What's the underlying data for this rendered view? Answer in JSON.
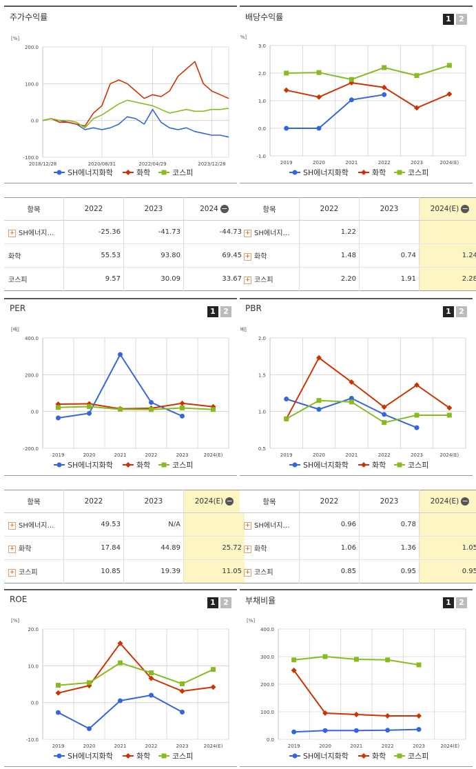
{
  "colors": {
    "sh": "#3366dd",
    "chem": "#cc3300",
    "kospi": "#88bb22",
    "grid": "#d0d0d0",
    "est_bg": "#fdf5c4"
  },
  "legend": [
    "SH에너지화학",
    "화학",
    "코스피"
  ],
  "page_buttons": [
    "1",
    "2"
  ],
  "charts": {
    "price": {
      "title": "주가수익률",
      "unit": "[%]",
      "y_ticks": [
        "200.0",
        "100.0",
        "0.0",
        "-100.0"
      ],
      "x_ticks": [
        "2018/12/28",
        "2020/08/31",
        "2022/04/29",
        "2023/12/28"
      ]
    },
    "dividend": {
      "title": "배당수익률",
      "unit": "[%]",
      "y_ticks": [
        "3.0",
        "2.0",
        "1.0",
        "0.0",
        "-1.0"
      ],
      "x_ticks": [
        "2019",
        "2020",
        "2021",
        "2022",
        "2023",
        "2024(E)"
      ]
    },
    "per": {
      "title": "PER",
      "unit": "[배]",
      "y_ticks": [
        "400.0",
        "200.0",
        "0.0",
        "-200.0"
      ],
      "x_ticks": [
        "2019",
        "2020",
        "2021",
        "2022",
        "2023",
        "2024(E)"
      ]
    },
    "pbr": {
      "title": "PBR",
      "unit": "[배]",
      "y_ticks": [
        "2.0",
        "1.5",
        "1.0",
        "0.5"
      ],
      "x_ticks": [
        "2019",
        "2020",
        "2021",
        "2022",
        "2023",
        "2024(E)"
      ]
    },
    "roe": {
      "title": "ROE",
      "unit": "[%]",
      "y_ticks": [
        "20.0",
        "10.0",
        "0.0",
        "-10.0"
      ],
      "x_ticks": [
        "2019",
        "2020",
        "2021",
        "2022",
        "2023",
        "2024(E)"
      ]
    },
    "debt": {
      "title": "부채비율",
      "unit": "[%]",
      "y_ticks": [
        "400.0",
        "300.0",
        "200.0",
        "100.0",
        "0.0"
      ],
      "x_ticks": [
        "2019",
        "2020",
        "2021",
        "2022",
        "2023",
        "2024(E)"
      ]
    }
  },
  "tables": {
    "price": {
      "headers": [
        "항목",
        "2022",
        "2023",
        "2024"
      ],
      "rows": [
        [
          "SH에너지…",
          "-25.36",
          "-41.73",
          "-44.73"
        ],
        [
          "화학",
          "55.53",
          "93.80",
          "69.45"
        ],
        [
          "코스피",
          "9.57",
          "30.09",
          "33.67"
        ]
      ]
    },
    "dividend": {
      "headers": [
        "항목",
        "2022",
        "2023",
        "2024(E)"
      ],
      "rows": [
        [
          "SH에너지…",
          "1.22",
          "",
          ""
        ],
        [
          "화학",
          "1.48",
          "0.74",
          "1.24"
        ],
        [
          "코스피",
          "2.20",
          "1.91",
          "2.28"
        ]
      ]
    },
    "per": {
      "headers": [
        "항목",
        "2022",
        "2023",
        "2024(E)"
      ],
      "rows": [
        [
          "SH에너지…",
          "49.53",
          "N/A",
          ""
        ],
        [
          "화학",
          "17.84",
          "44.89",
          "25.72"
        ],
        [
          "코스피",
          "10.85",
          "19.39",
          "11.05"
        ]
      ]
    },
    "pbr": {
      "headers": [
        "항목",
        "2022",
        "2023",
        "2024(E)"
      ],
      "rows": [
        [
          "SH에너지…",
          "0.96",
          "0.78",
          ""
        ],
        [
          "화학",
          "1.06",
          "1.36",
          "1.05"
        ],
        [
          "코스피",
          "0.85",
          "0.95",
          "0.95"
        ]
      ]
    }
  },
  "chart_data": [
    {
      "type": "line",
      "title": "주가수익률",
      "ylabel": "[%]",
      "ylim": [
        -100,
        200
      ],
      "x": [
        "2018/12/28",
        "2019/03",
        "2019/06",
        "2019/09",
        "2019/12",
        "2020/03",
        "2020/06",
        "2020/08/31",
        "2020/12",
        "2021/03",
        "2021/06",
        "2021/09",
        "2021/12",
        "2022/04/29",
        "2022/06",
        "2022/09",
        "2022/12",
        "2023/03",
        "2023/06",
        "2023/09",
        "2023/12/28",
        "2024/03",
        "2024/06"
      ],
      "series": [
        {
          "name": "SH에너지화학",
          "values": [
            0,
            5,
            0,
            -5,
            -10,
            -25,
            -20,
            -25,
            -20,
            -10,
            10,
            5,
            -10,
            30,
            -5,
            -20,
            -25,
            -20,
            -30,
            -35,
            -40,
            -40,
            -45
          ]
        },
        {
          "name": "화학",
          "values": [
            0,
            5,
            -5,
            -5,
            -10,
            -15,
            20,
            40,
            100,
            110,
            100,
            80,
            60,
            70,
            65,
            80,
            120,
            140,
            160,
            100,
            80,
            70,
            60
          ]
        },
        {
          "name": "코스피",
          "values": [
            0,
            5,
            0,
            0,
            -5,
            -20,
            5,
            15,
            30,
            45,
            55,
            50,
            45,
            40,
            30,
            20,
            25,
            30,
            25,
            25,
            30,
            30,
            33
          ]
        }
      ]
    },
    {
      "type": "line",
      "title": "배당수익률",
      "ylabel": "[%]",
      "ylim": [
        -1,
        3
      ],
      "x": [
        "2019",
        "2020",
        "2021",
        "2022",
        "2023",
        "2024(E)"
      ],
      "series": [
        {
          "name": "SH에너지화학",
          "values": [
            0.0,
            0.0,
            1.03,
            1.22,
            null,
            null
          ]
        },
        {
          "name": "화학",
          "values": [
            1.38,
            1.13,
            1.65,
            1.48,
            0.74,
            1.24
          ]
        },
        {
          "name": "코스피",
          "values": [
            2.0,
            2.02,
            1.77,
            2.2,
            1.91,
            2.28
          ]
        }
      ]
    },
    {
      "type": "line",
      "title": "PER",
      "ylabel": "[배]",
      "ylim": [
        -200,
        400
      ],
      "x": [
        "2019",
        "2020",
        "2021",
        "2022",
        "2023",
        "2024(E)"
      ],
      "series": [
        {
          "name": "SH에너지화학",
          "values": [
            -35,
            -10,
            310,
            49.53,
            -25,
            null
          ]
        },
        {
          "name": "화학",
          "values": [
            40,
            42,
            15,
            17.84,
            44.89,
            25.72
          ]
        },
        {
          "name": "코스피",
          "values": [
            22,
            27,
            12,
            10.85,
            19.39,
            11.05
          ]
        }
      ]
    },
    {
      "type": "line",
      "title": "PBR",
      "ylabel": "[배]",
      "ylim": [
        0.5,
        2.0
      ],
      "x": [
        "2019",
        "2020",
        "2021",
        "2022",
        "2023",
        "2024(E)"
      ],
      "series": [
        {
          "name": "SH에너지화학",
          "values": [
            1.17,
            1.03,
            1.18,
            0.96,
            0.78,
            null
          ]
        },
        {
          "name": "화학",
          "values": [
            0.9,
            1.73,
            1.4,
            1.06,
            1.36,
            1.05
          ]
        },
        {
          "name": "코스피",
          "values": [
            0.9,
            1.15,
            1.13,
            0.85,
            0.95,
            0.95
          ]
        }
      ]
    },
    {
      "type": "line",
      "title": "ROE",
      "ylabel": "[%]",
      "ylim": [
        -10,
        20
      ],
      "x": [
        "2019",
        "2020",
        "2021",
        "2022",
        "2023",
        "2024(E)"
      ],
      "series": [
        {
          "name": "SH에너지화학",
          "values": [
            -2.7,
            -7.1,
            0.5,
            2.0,
            -2.6,
            null
          ]
        },
        {
          "name": "화학",
          "values": [
            2.6,
            4.6,
            16.1,
            6.6,
            3.1,
            4.2
          ]
        },
        {
          "name": "코스피",
          "values": [
            4.7,
            5.4,
            10.8,
            8.1,
            5.1,
            9.0
          ]
        }
      ]
    },
    {
      "type": "line",
      "title": "부채비율",
      "ylabel": "[%]",
      "ylim": [
        0,
        400
      ],
      "x": [
        "2019",
        "2020",
        "2021",
        "2022",
        "2023",
        "2024(E)"
      ],
      "series": [
        {
          "name": "SH에너지화학",
          "values": [
            27,
            32,
            32,
            33,
            36,
            null
          ]
        },
        {
          "name": "화학",
          "values": [
            250,
            95,
            90,
            85,
            85,
            null
          ]
        },
        {
          "name": "코스피",
          "values": [
            288,
            300,
            290,
            288,
            270,
            null
          ]
        }
      ]
    }
  ]
}
